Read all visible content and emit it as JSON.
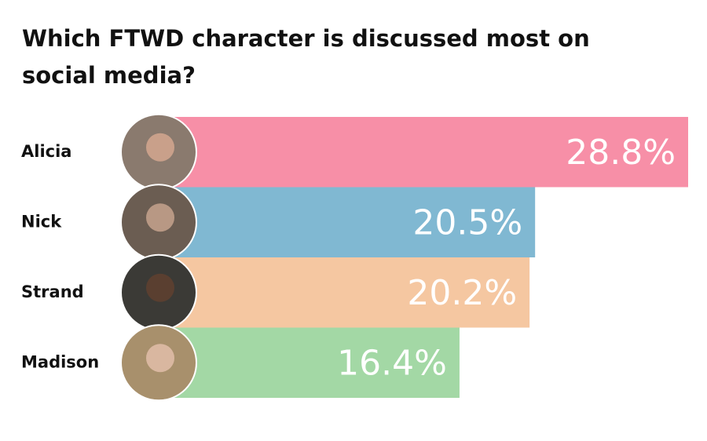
{
  "chart_data": {
    "type": "bar",
    "orientation": "horizontal",
    "title": "Which FTWD character is discussed most on social media?",
    "categories": [
      "Alicia",
      "Nick",
      "Strand",
      "Madison"
    ],
    "values": [
      28.8,
      20.5,
      20.2,
      16.4
    ],
    "value_labels": [
      "28.8%",
      "20.5%",
      "20.2%",
      "16.4%"
    ],
    "colors": [
      "#f78fa7",
      "#80b8d2",
      "#f5c7a1",
      "#a3d8a5"
    ]
  }
}
